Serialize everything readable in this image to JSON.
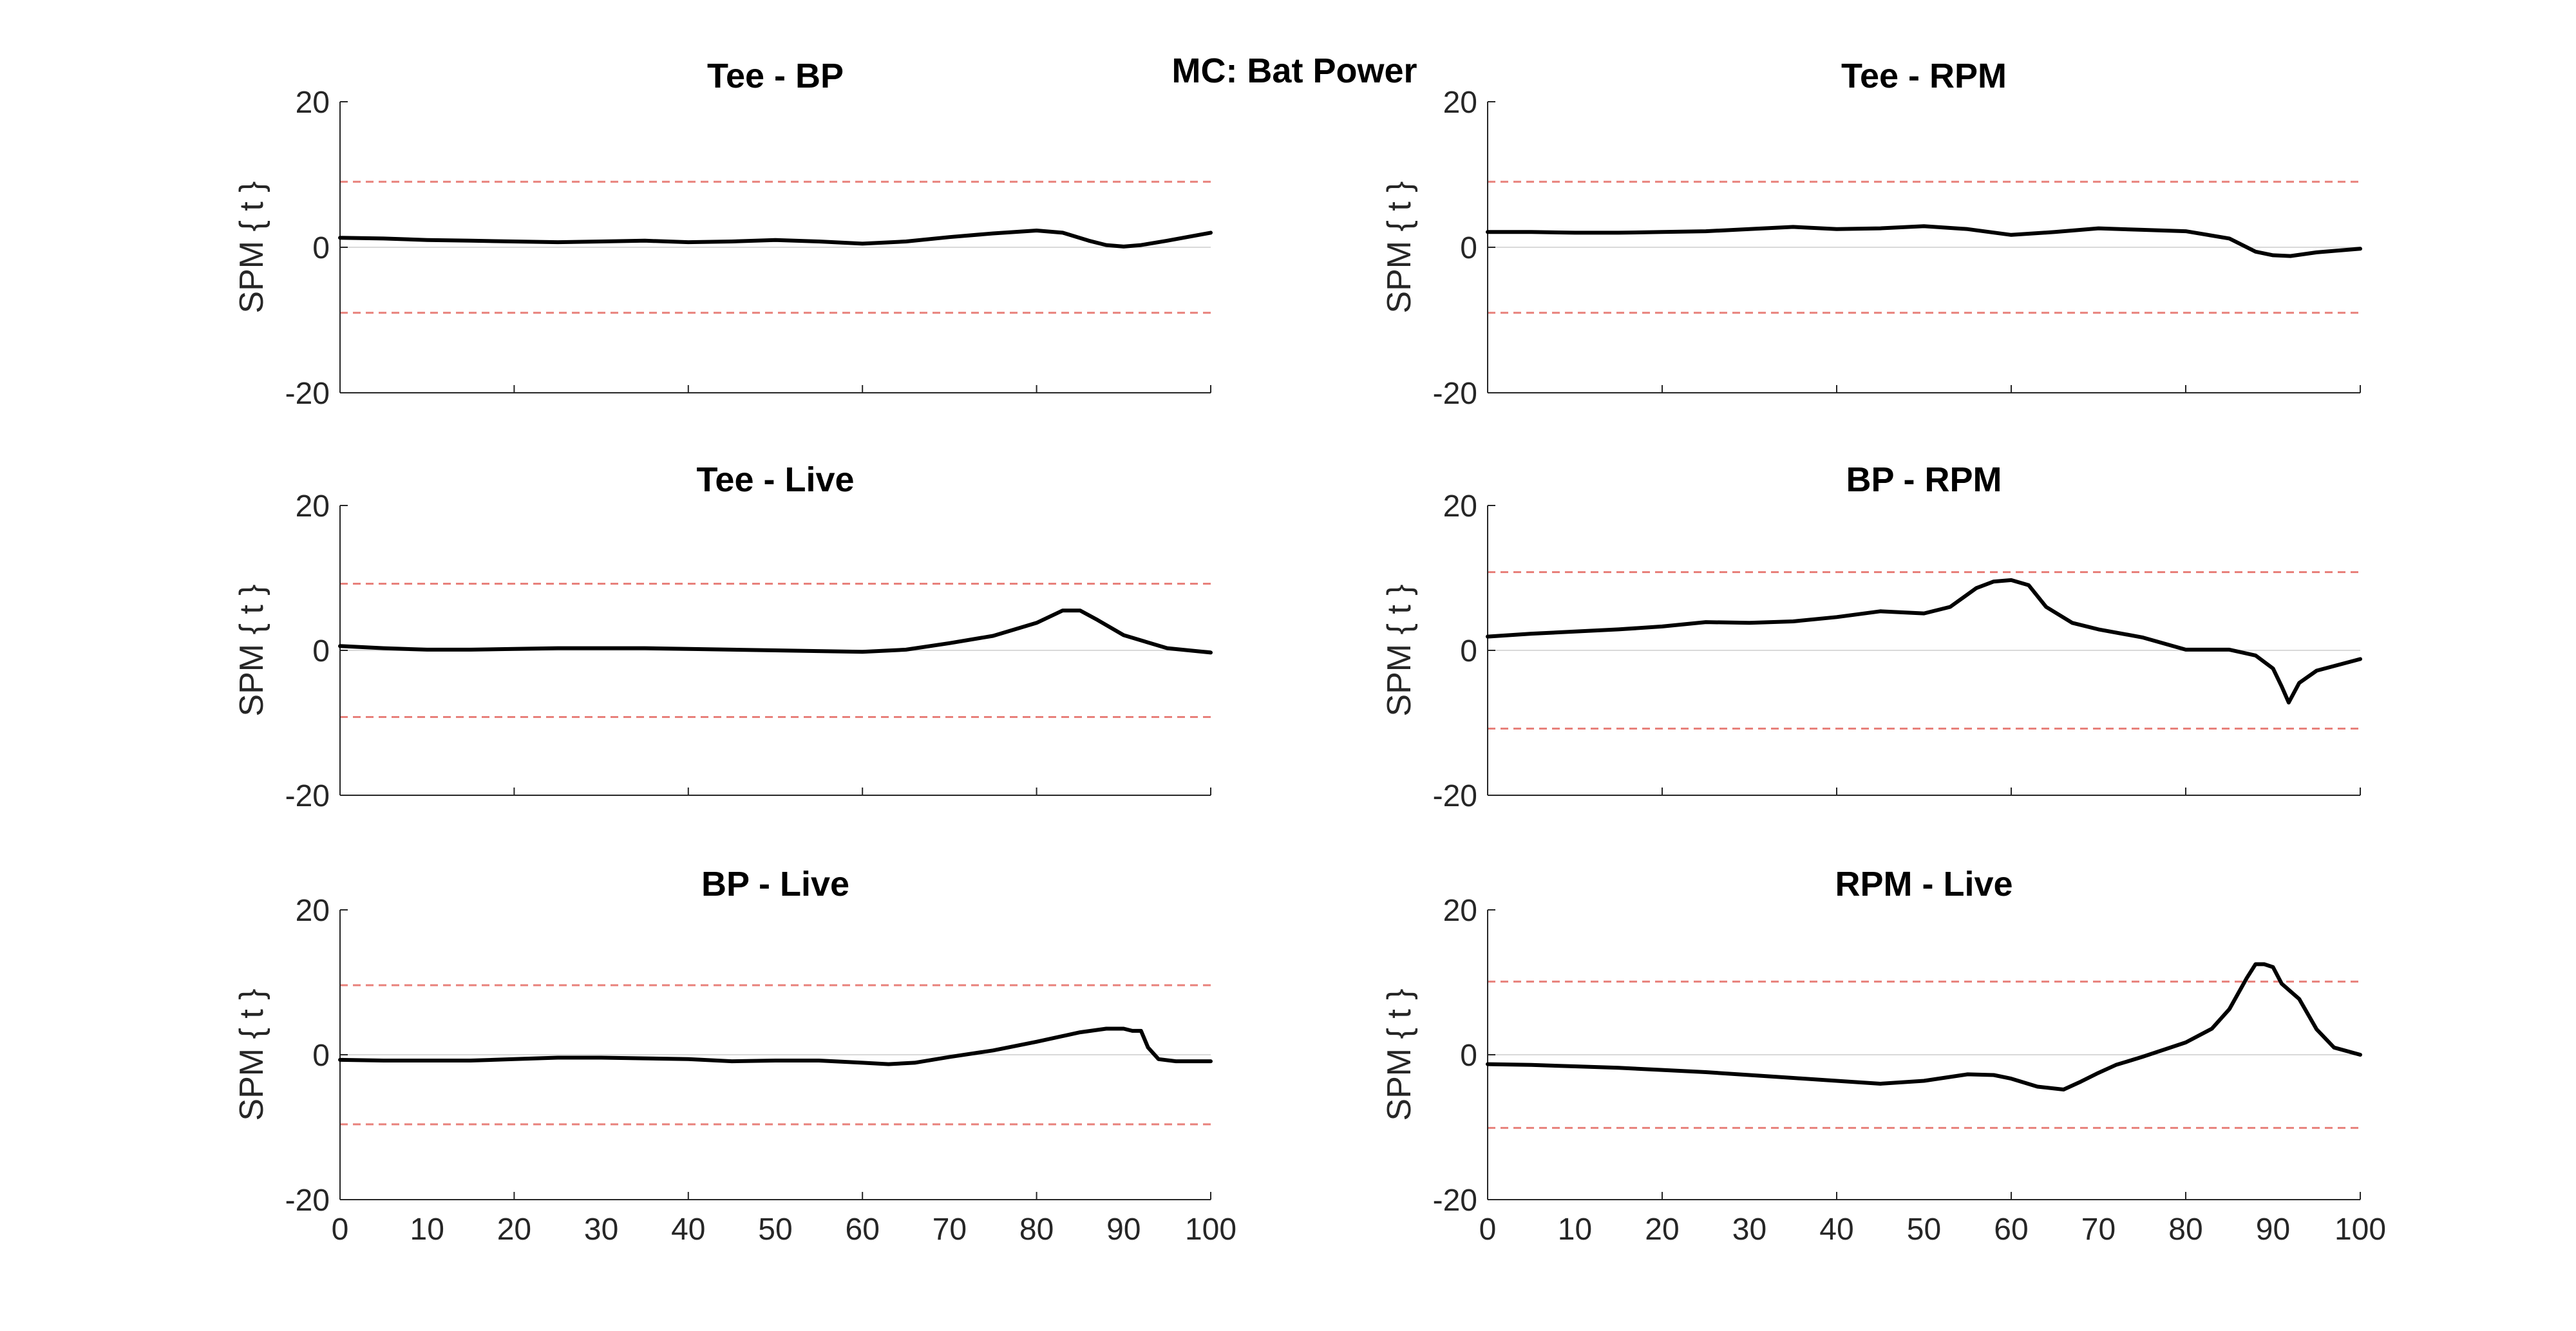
{
  "figure": {
    "title": "MC: Bat Power"
  },
  "colors": {
    "curve": "#000000",
    "threshold": "#e8817b",
    "zero": "#d9d9d9",
    "axis": "#262626"
  },
  "chart_data": [
    {
      "type": "line",
      "title": "Tee - BP",
      "ylabel": "SPM { t }",
      "xlabel": "",
      "xlim": [
        0,
        100
      ],
      "ylim": [
        -20,
        20
      ],
      "xticks": [],
      "yticks": [
        -20,
        0,
        20
      ],
      "threshold": 9.0,
      "x": [
        0,
        5,
        10,
        15,
        20,
        25,
        30,
        35,
        40,
        45,
        50,
        55,
        60,
        65,
        70,
        75,
        80,
        83,
        86,
        88,
        90,
        92,
        95,
        100
      ],
      "y": [
        1.3,
        1.2,
        1.0,
        0.9,
        0.8,
        0.7,
        0.8,
        0.9,
        0.7,
        0.8,
        1.0,
        0.8,
        0.5,
        0.8,
        1.4,
        1.9,
        2.3,
        2.0,
        0.9,
        0.3,
        0.1,
        0.3,
        0.9,
        2.0
      ]
    },
    {
      "type": "line",
      "title": "Tee - RPM",
      "ylabel": "SPM { t }",
      "xlabel": "",
      "xlim": [
        0,
        100
      ],
      "ylim": [
        -20,
        20
      ],
      "xticks": [],
      "yticks": [
        -20,
        0,
        20
      ],
      "threshold": 9.0,
      "x": [
        0,
        5,
        10,
        15,
        20,
        25,
        30,
        35,
        40,
        45,
        50,
        55,
        60,
        65,
        70,
        75,
        80,
        85,
        88,
        90,
        92,
        95,
        100
      ],
      "y": [
        2.1,
        2.1,
        2.0,
        2.0,
        2.1,
        2.2,
        2.5,
        2.8,
        2.5,
        2.6,
        2.9,
        2.5,
        1.7,
        2.1,
        2.6,
        2.4,
        2.2,
        1.2,
        -0.6,
        -1.1,
        -1.2,
        -0.7,
        -0.2
      ]
    },
    {
      "type": "line",
      "title": "Tee - Live",
      "ylabel": "SPM { t }",
      "xlabel": "",
      "xlim": [
        0,
        100
      ],
      "ylim": [
        -20,
        20
      ],
      "xticks": [],
      "yticks": [
        -20,
        0,
        20
      ],
      "threshold": 9.2,
      "x": [
        0,
        5,
        10,
        15,
        20,
        25,
        30,
        35,
        40,
        45,
        50,
        55,
        60,
        65,
        70,
        75,
        80,
        83,
        85,
        87,
        90,
        95,
        100
      ],
      "y": [
        0.6,
        0.3,
        0.1,
        0.1,
        0.2,
        0.3,
        0.3,
        0.3,
        0.2,
        0.1,
        0.0,
        -0.1,
        -0.2,
        0.1,
        1.0,
        2.0,
        3.8,
        5.5,
        5.5,
        4.2,
        2.1,
        0.3,
        -0.3
      ]
    },
    {
      "type": "line",
      "title": "BP - RPM",
      "ylabel": "SPM { t }",
      "xlabel": "",
      "xlim": [
        0,
        100
      ],
      "ylim": [
        -20,
        20
      ],
      "xticks": [],
      "yticks": [
        -20,
        0,
        20
      ],
      "threshold": 10.8,
      "x": [
        0,
        5,
        10,
        15,
        20,
        25,
        30,
        35,
        40,
        45,
        50,
        53,
        56,
        58,
        60,
        62,
        64,
        67,
        70,
        75,
        80,
        85,
        88,
        90,
        91,
        91.8,
        93,
        95,
        100
      ],
      "y": [
        1.9,
        2.3,
        2.6,
        2.9,
        3.3,
        3.9,
        3.8,
        4.0,
        4.6,
        5.4,
        5.1,
        6.0,
        8.6,
        9.5,
        9.7,
        9.0,
        6.0,
        3.8,
        2.9,
        1.8,
        0.1,
        0.1,
        -0.7,
        -2.5,
        -5.0,
        -7.2,
        -4.5,
        -2.8,
        -1.2
      ]
    },
    {
      "type": "line",
      "title": "BP - Live",
      "ylabel": "SPM { t }",
      "xlabel": "",
      "xlim": [
        0,
        100
      ],
      "ylim": [
        -20,
        20
      ],
      "xticks": [
        0,
        10,
        20,
        30,
        40,
        50,
        60,
        70,
        80,
        90,
        100
      ],
      "yticks": [
        -20,
        0,
        20
      ],
      "threshold": 9.6,
      "x": [
        0,
        5,
        10,
        15,
        20,
        25,
        30,
        35,
        40,
        45,
        50,
        55,
        60,
        63,
        66,
        70,
        75,
        80,
        85,
        88,
        90,
        91,
        92,
        92.8,
        94,
        96,
        100
      ],
      "y": [
        -0.7,
        -0.8,
        -0.8,
        -0.8,
        -0.6,
        -0.4,
        -0.4,
        -0.5,
        -0.6,
        -0.9,
        -0.8,
        -0.8,
        -1.1,
        -1.3,
        -1.1,
        -0.3,
        0.6,
        1.8,
        3.1,
        3.6,
        3.6,
        3.3,
        3.3,
        1.0,
        -0.6,
        -0.9,
        -0.9
      ]
    },
    {
      "type": "line",
      "title": "RPM - Live",
      "ylabel": "SPM { t }",
      "xlabel": "",
      "xlim": [
        0,
        100
      ],
      "ylim": [
        -20,
        20
      ],
      "xticks": [
        0,
        10,
        20,
        30,
        40,
        50,
        60,
        70,
        80,
        90,
        100
      ],
      "yticks": [
        -20,
        0,
        20
      ],
      "threshold": 10.1,
      "x": [
        0,
        5,
        10,
        15,
        20,
        25,
        30,
        35,
        40,
        45,
        50,
        55,
        58,
        60,
        63,
        66,
        68,
        70,
        72,
        75,
        80,
        83,
        85,
        87,
        88,
        89,
        90,
        91,
        93,
        95,
        97,
        100
      ],
      "y": [
        -1.3,
        -1.4,
        -1.6,
        -1.8,
        -2.1,
        -2.4,
        -2.8,
        -3.2,
        -3.6,
        -4.0,
        -3.6,
        -2.7,
        -2.8,
        -3.3,
        -4.4,
        -4.8,
        -3.7,
        -2.5,
        -1.4,
        -0.3,
        1.7,
        3.6,
        6.3,
        10.6,
        12.5,
        12.5,
        12.1,
        9.8,
        7.7,
        3.5,
        1.0,
        0.0
      ]
    }
  ]
}
